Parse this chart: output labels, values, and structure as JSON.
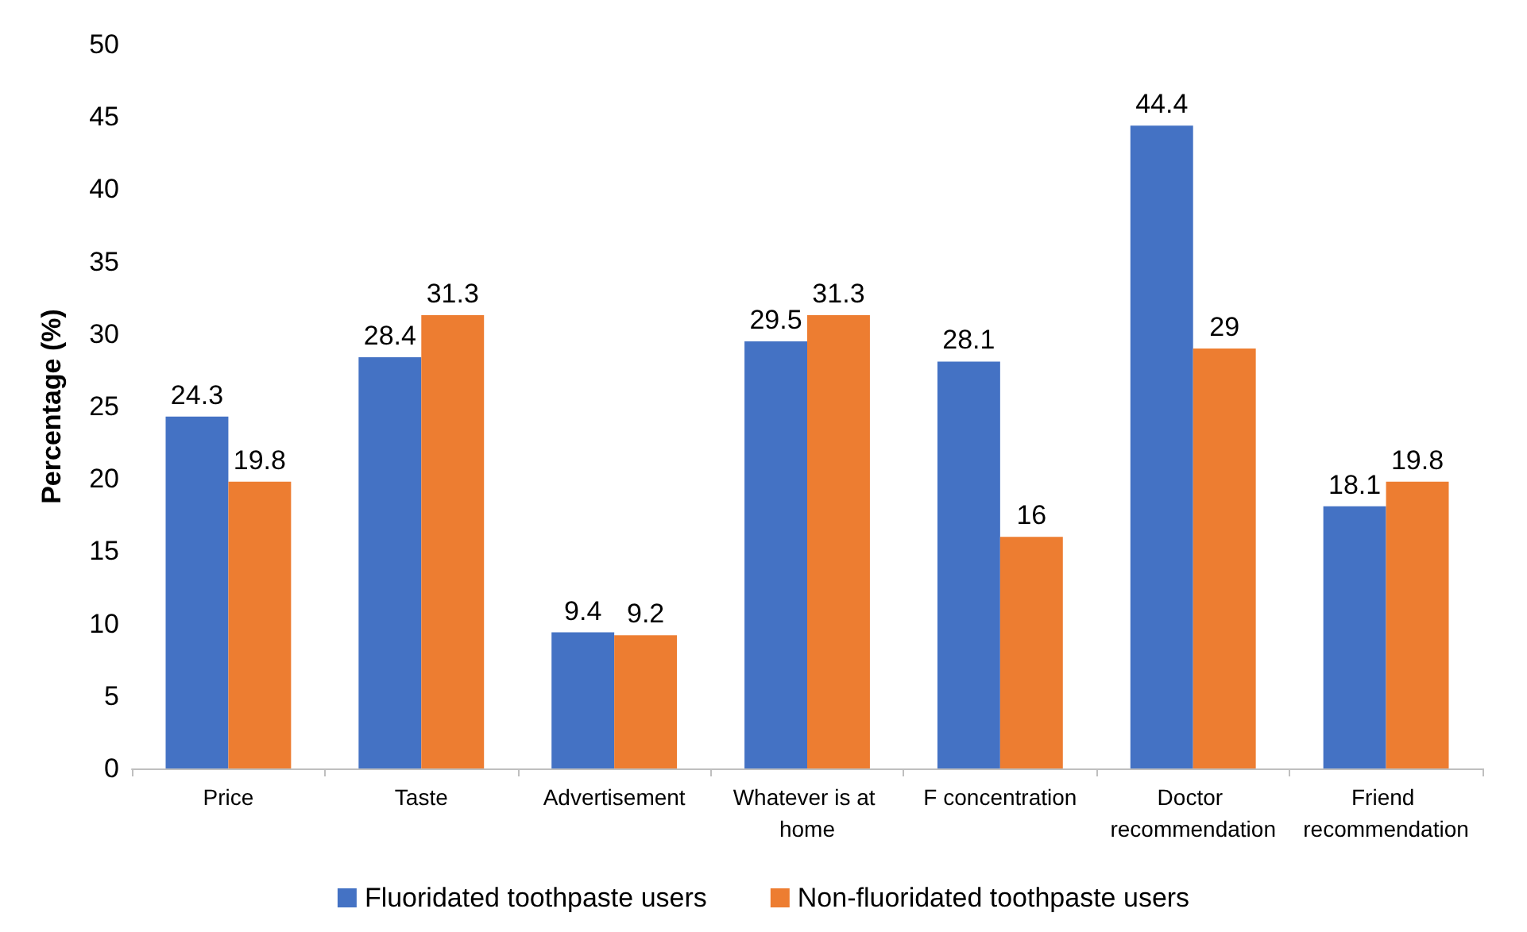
{
  "chart_data": {
    "type": "bar",
    "ylabel": "Percentage (%)",
    "categories": [
      "Price",
      "Taste",
      "Advertisement",
      "Whatever is at home",
      "F concentration",
      "Doctor recommendation",
      "Friend recommendation"
    ],
    "series": [
      {
        "name": "Fluoridated toothpaste users",
        "color": "#4472c4",
        "values": [
          24.3,
          28.4,
          9.4,
          29.5,
          28.1,
          44.4,
          18.1
        ]
      },
      {
        "name": "Non-fluoridated toothpaste users",
        "color": "#ed7d31",
        "values": [
          19.8,
          31.3,
          9.2,
          31.3,
          16,
          29,
          19.8
        ]
      }
    ],
    "ylim": [
      0,
      50
    ],
    "yticks": [
      0,
      5,
      10,
      15,
      20,
      25,
      30,
      35,
      40,
      45,
      50
    ],
    "grid": false,
    "legend": "bottom",
    "data_labels": true
  }
}
